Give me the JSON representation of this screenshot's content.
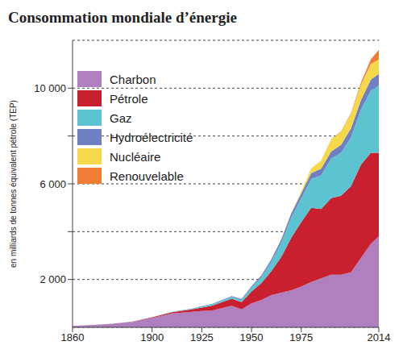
{
  "chart_data": {
    "type": "area",
    "stacked": true,
    "title": "Consommation mondiale d’énergie",
    "y_label": "en milliards de tonnes équivalent pétrole (TEP)",
    "x": [
      1860,
      1870,
      1880,
      1890,
      1900,
      1910,
      1920,
      1925,
      1930,
      1940,
      1945,
      1950,
      1955,
      1960,
      1965,
      1970,
      1975,
      1980,
      1985,
      1990,
      1995,
      2000,
      2005,
      2010,
      2014
    ],
    "series": [
      {
        "name": "Charbon",
        "color": "#b07fc0",
        "values": [
          60,
          100,
          150,
          230,
          400,
          580,
          650,
          680,
          700,
          900,
          750,
          1000,
          1150,
          1350,
          1450,
          1550,
          1700,
          1900,
          2050,
          2200,
          2200,
          2300,
          2900,
          3500,
          3800
        ]
      },
      {
        "name": "Pétrole",
        "color": "#c8202f",
        "values": [
          0,
          0,
          5,
          10,
          20,
          50,
          100,
          150,
          200,
          300,
          300,
          500,
          700,
          1000,
          1500,
          2200,
          2700,
          3100,
          2900,
          3200,
          3300,
          3600,
          3900,
          3800,
          3500
        ]
      },
      {
        "name": "Gaz",
        "color": "#5cc3d1",
        "values": [
          0,
          0,
          0,
          0,
          5,
          15,
          20,
          40,
          60,
          80,
          100,
          170,
          250,
          400,
          600,
          850,
          1000,
          1200,
          1400,
          1650,
          1800,
          2050,
          2300,
          2600,
          2800
        ]
      },
      {
        "name": "Hydroélectricité",
        "color": "#6e7fc4",
        "values": [
          0,
          0,
          0,
          0,
          0,
          5,
          10,
          15,
          20,
          30,
          35,
          50,
          70,
          100,
          130,
          170,
          200,
          250,
          280,
          300,
          330,
          370,
          400,
          460,
          500
        ]
      },
      {
        "name": "Nucléaire",
        "color": "#f5d94a",
        "values": [
          0,
          0,
          0,
          0,
          0,
          0,
          0,
          0,
          0,
          0,
          0,
          0,
          0,
          0,
          5,
          20,
          80,
          200,
          350,
          500,
          550,
          600,
          650,
          650,
          600
        ]
      },
      {
        "name": "Renouvelable",
        "color": "#ef7d34",
        "values": [
          0,
          0,
          0,
          0,
          0,
          0,
          0,
          0,
          0,
          0,
          0,
          0,
          0,
          0,
          0,
          0,
          0,
          0,
          0,
          10,
          20,
          40,
          80,
          200,
          400
        ]
      }
    ],
    "xlim": [
      1860,
      2014
    ],
    "xticks": [
      1860,
      1900,
      1925,
      1950,
      1975,
      2014
    ],
    "ylim": [
      0,
      12000
    ],
    "yticks": [
      {
        "value": 2000,
        "label": "2 000"
      },
      {
        "value": 4000,
        "label": null
      },
      {
        "value": 6000,
        "label": "6 000"
      },
      {
        "value": 8000,
        "label": null
      },
      {
        "value": 10000,
        "label": "10 000"
      }
    ],
    "grid": true,
    "legend": "upper left"
  }
}
